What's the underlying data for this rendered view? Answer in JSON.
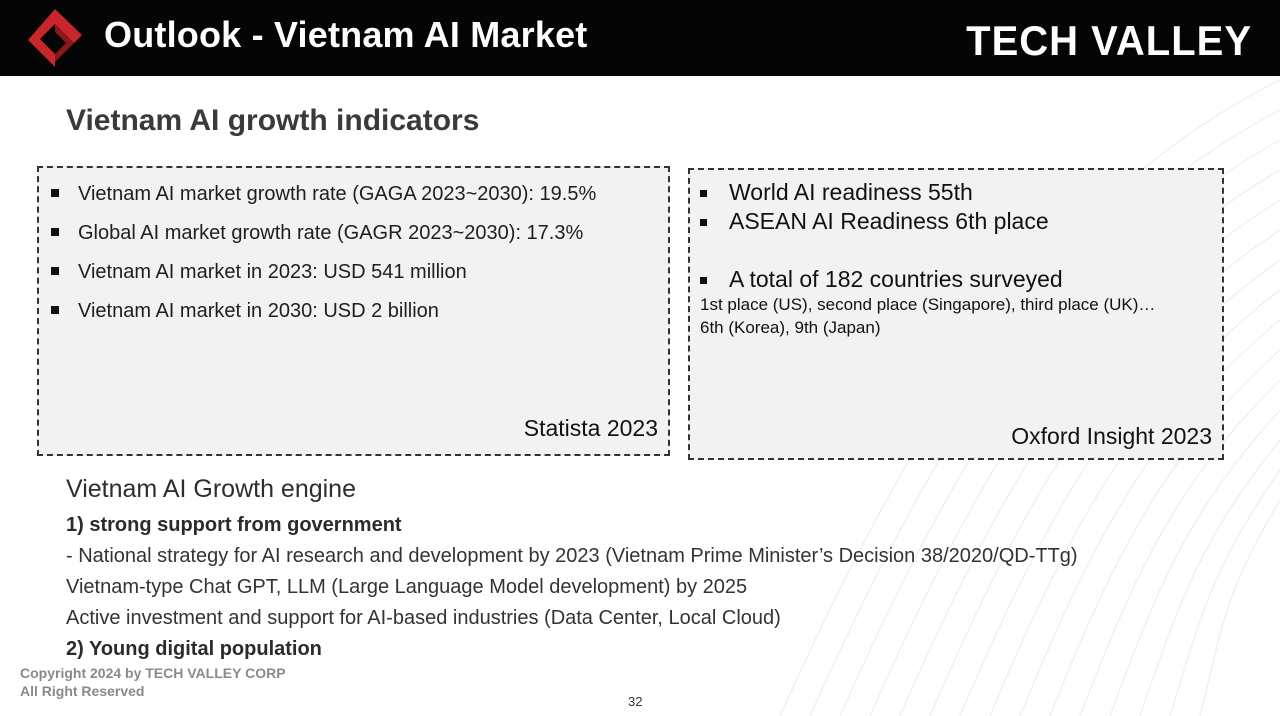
{
  "header": {
    "title": "Outlook - Vietnam AI Market",
    "brand": "TECH VALLEY",
    "logo_icon": "tech-valley-logo-icon",
    "colors": {
      "background": "#050505",
      "logo_red": "#c8262a",
      "logo_dark_red": "#8d1619"
    }
  },
  "section_title": "Vietnam AI growth indicators",
  "left_box": {
    "items": [
      "Vietnam AI market growth rate (GAGA 2023~2030): 19.5%",
      "Global AI market growth rate (GAGR 2023~2030): 17.3%",
      "Vietnam AI market in 2023: USD 541 million",
      "Vietnam AI market in 2030: USD 2 billion"
    ],
    "source": "Statista 2023"
  },
  "right_box": {
    "items": [
      "World AI readiness 55th",
      "ASEAN AI Readiness 6th place",
      "A total of 182 countries surveyed"
    ],
    "note_line1": "1st place (US), second place (Singapore), third place (UK)…",
    "note_line2": "6th (Korea), 9th (Japan)",
    "source": "Oxford Insight 2023"
  },
  "growth_engine": {
    "title": "Vietnam AI Growth engine",
    "point1": "1) strong support from government",
    "line1": "- National strategy for AI research and development by 2023 (Vietnam Prime Minister’s Decision 38/2020/QD-TTg)",
    "line2": "Vietnam-type Chat GPT, LLM (Large Language Model development) by 2025",
    "line3": "Active investment and support for AI-based industries (Data Center, Local Cloud)",
    "point2": "2) Young digital population"
  },
  "footer": {
    "copyright_line1": "Copyright 2024 by TECH VALLEY CORP",
    "copyright_line2": "All Right Reserved",
    "page_number": "32"
  }
}
